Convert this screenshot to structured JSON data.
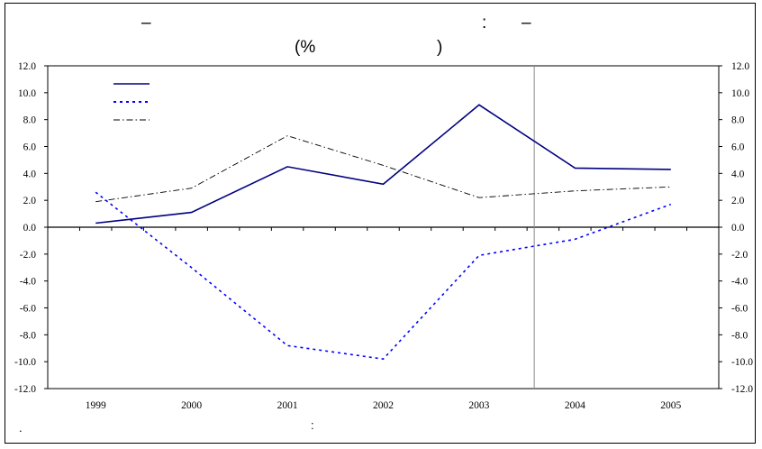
{
  "chart_data": {
    "type": "line",
    "title": {
      "line1": [
        "–",
        ":",
        "–"
      ],
      "line2": [
        "(%",
        ")"
      ]
    },
    "source_note": [
      ".",
      ":"
    ],
    "x": [
      "1999",
      "2000",
      "2001",
      "2002",
      "2003",
      "2004",
      "2005"
    ],
    "ylim": [
      -12.0,
      12.0
    ],
    "yticks": [
      "12.0",
      "10.0",
      "8.0",
      "6.0",
      "4.0",
      "2.0",
      "0.0",
      "-2.0",
      "-4.0",
      "-6.0",
      "-8.0",
      "-10.0",
      "-12.0"
    ],
    "forecast_divider_after": "2003",
    "grid": false,
    "legend_position": "top-left",
    "series": [
      {
        "values": [
          0.3,
          1.1,
          4.5,
          3.2,
          9.1,
          4.4,
          4.3
        ],
        "color": "#00007f",
        "style": "solid"
      },
      {
        "values": [
          2.6,
          -3.0,
          -8.8,
          -9.8,
          -2.1,
          -0.9,
          1.7
        ],
        "color": "#0000ff",
        "style": "dotted"
      },
      {
        "values": [
          1.9,
          2.9,
          6.8,
          4.6,
          2.2,
          2.7,
          3.0
        ],
        "color": "#000000",
        "style": "dashdot"
      }
    ]
  }
}
